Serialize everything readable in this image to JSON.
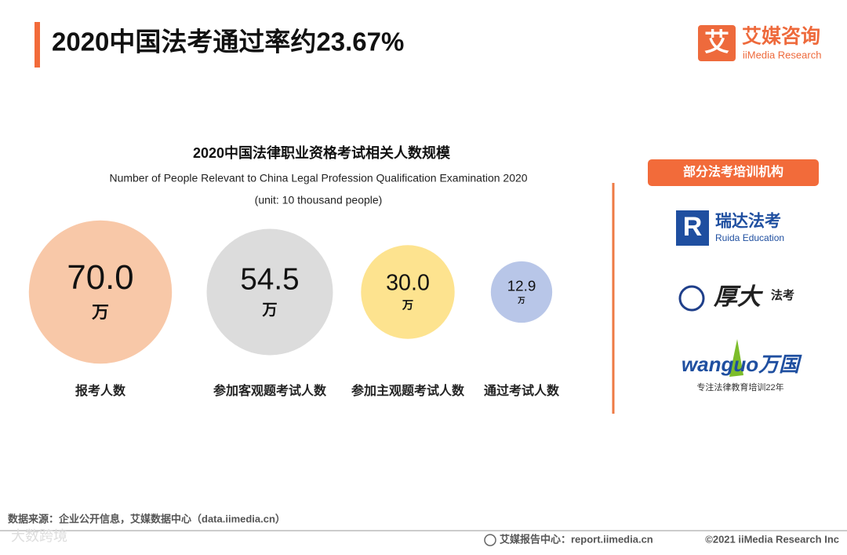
{
  "header": {
    "title": "2020中国法考通过率约23.67%",
    "logo_icon": "艾",
    "logo_cn": "艾媒咨询",
    "logo_en": "iiMedia Research"
  },
  "chart_data": {
    "type": "bubble",
    "title": "2020中国法律职业资格考试相关人数规模",
    "subtitle": "Number of People Relevant to China Legal Profession Qualification Examination 2020",
    "unit_note": "(unit: 10 thousand people)",
    "categories": [
      "报考人数",
      "参加客观题考试人数",
      "参加主观题考试人数",
      "通过考试人数"
    ],
    "values": [
      70,
      54.5,
      30,
      12.9
    ],
    "value_labels": [
      "70.0",
      "54.5",
      "30.0",
      "12.9"
    ],
    "unit": "万",
    "colors": [
      "#f8c8a8",
      "#dcdcdc",
      "#fde38f",
      "#b8c6e8"
    ]
  },
  "sidebar": {
    "title": "部分法考培训机构",
    "institutions": [
      {
        "name": "瑞达法考",
        "sub": "Ruida Education"
      },
      {
        "name": "厚大",
        "sub": "法考"
      },
      {
        "name": "wanguo万国",
        "sub": "专注法律教育培训22年"
      }
    ]
  },
  "source": "数据来源：企业公开信息，艾媒数据中心（data.iimedia.cn）",
  "footer": {
    "center": "艾媒报告中心：report.iimedia.cn",
    "copyright": "©2021  iiMedia Research  Inc"
  },
  "watermark": "大数跨境"
}
